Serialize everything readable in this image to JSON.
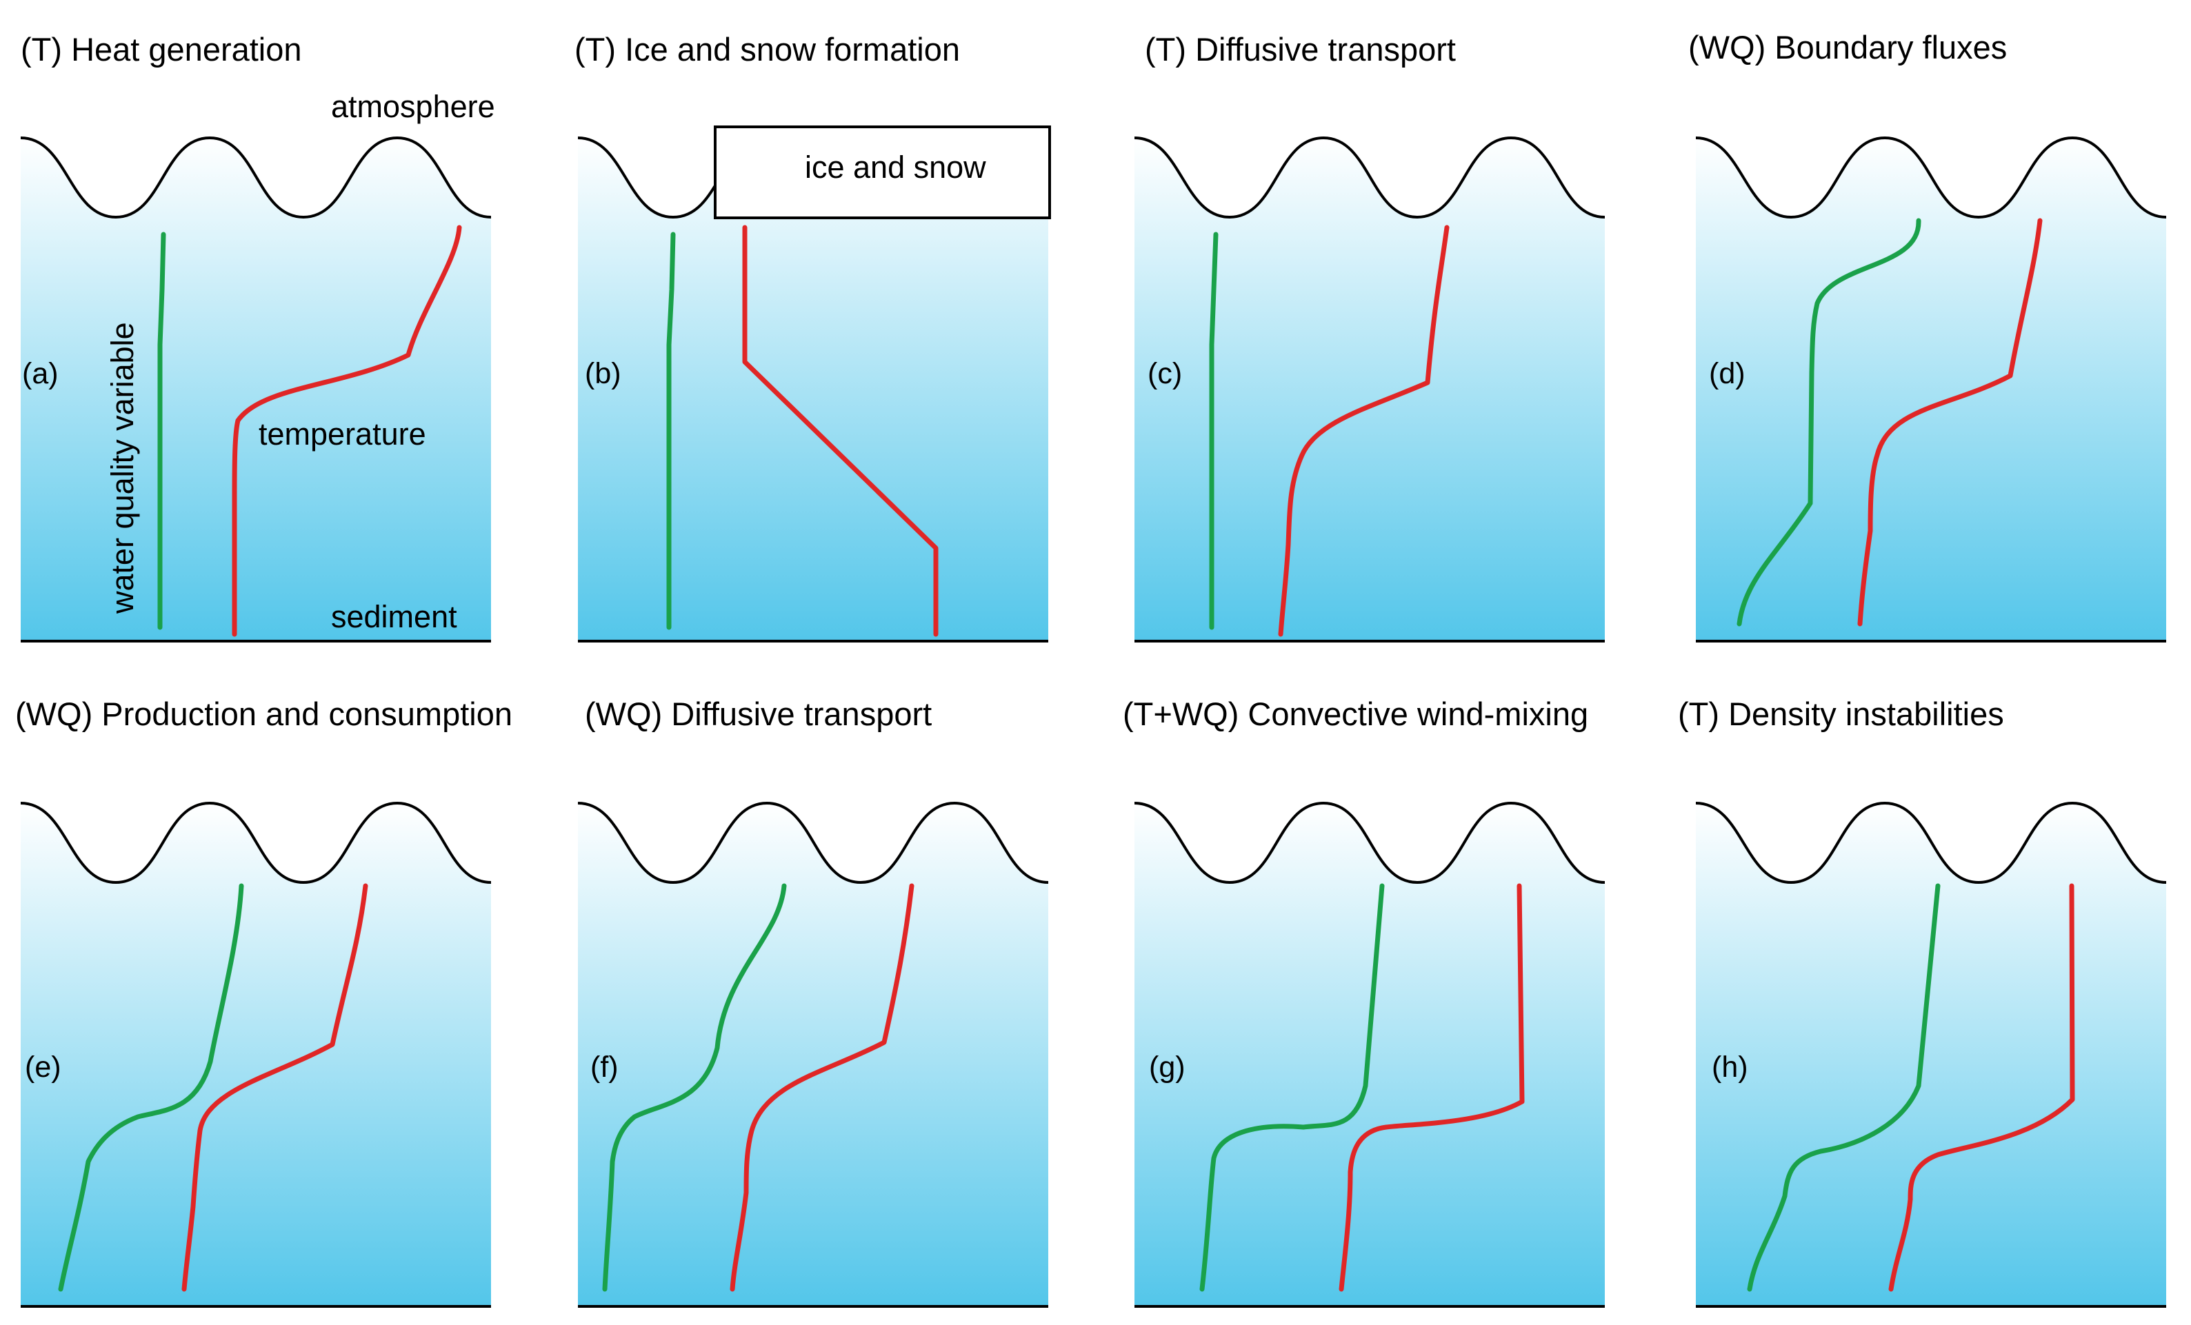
{
  "colors": {
    "water_top": "#ffffff",
    "water_bottom": "#53c6ea",
    "water_quality_line": "#1aa14a",
    "temperature_line": "#e02626"
  },
  "panels": [
    {
      "label": "(a)",
      "title": "(T) Heat generation"
    },
    {
      "label": "(b)",
      "title": "(T) Ice and snow formation"
    },
    {
      "label": "(c)",
      "title": "(T) Diffusive transport"
    },
    {
      "label": "(d)",
      "title": "(WQ) Boundary fluxes"
    },
    {
      "label": "(e)",
      "title": "(WQ) Production and consumption"
    },
    {
      "label": "(f)",
      "title": "(WQ) Diffusive transport"
    },
    {
      "label": "(g)",
      "title": "(T+WQ) Convective wind-mixing"
    },
    {
      "label": "(h)",
      "title": "(T) Density instabilities"
    }
  ],
  "annotations": {
    "atmosphere": "atmosphere",
    "sediment": "sediment",
    "temperature": "temperature",
    "water_quality_variable": "water quality variable",
    "ice_and_snow": "ice and snow"
  }
}
